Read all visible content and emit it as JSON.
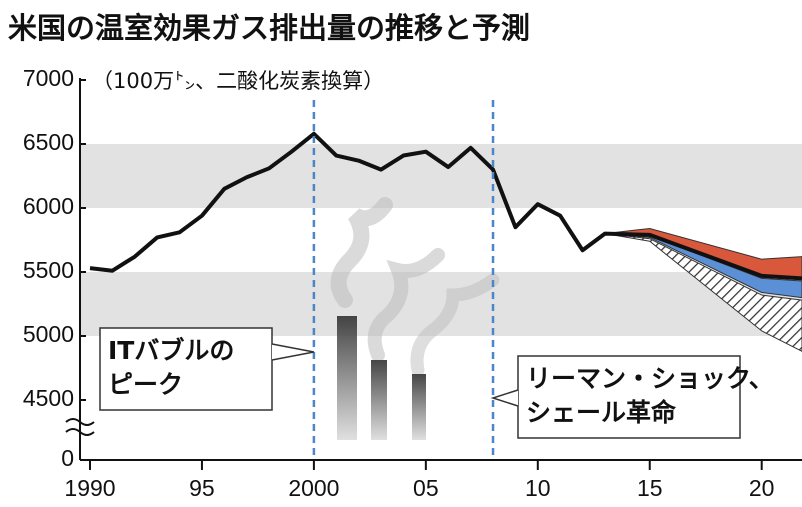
{
  "chart_data": {
    "type": "line",
    "title": "米国の温室効果ガス排出量の推移と予測",
    "y_label": "（100万㌧、二酸化炭素換算）",
    "xlim": [
      1990,
      2021.8
    ],
    "ylim": [
      0,
      7000
    ],
    "y_break": [
      0,
      4500
    ],
    "yticks": [
      0,
      4500,
      5000,
      5500,
      6000,
      6500,
      7000
    ],
    "xticks": [
      1990,
      {
        "value": 1995,
        "label": "95"
      },
      2000,
      {
        "value": 2005,
        "label": "05"
      },
      {
        "value": 2010,
        "label": "10"
      },
      {
        "value": 2015,
        "label": "15"
      },
      {
        "value": 2020,
        "label": "20"
      }
    ],
    "grid_bands": true,
    "series": [
      {
        "color": "#111111",
        "x": [
          1990,
          1991,
          1992,
          1993,
          1994,
          1995,
          1996,
          1997,
          1998,
          1999,
          2000,
          2001,
          2002,
          2003,
          2004,
          2005,
          2006,
          2007,
          2008,
          2009,
          2010,
          2011,
          2012,
          2013,
          2015,
          2020,
          2021.8
        ],
        "values": [
          5530,
          5510,
          5620,
          5770,
          5810,
          5940,
          6150,
          6240,
          6310,
          6440,
          6580,
          6410,
          6370,
          6300,
          6410,
          6440,
          6320,
          6470,
          6300,
          5850,
          6030,
          5940,
          5670,
          5800,
          5790,
          5470,
          5450
        ]
      }
    ],
    "bands": [
      {
        "color": "#d9583b",
        "x": [
          2013,
          2015,
          2020,
          2021.8
        ],
        "values": [
          5800,
          5840,
          5600,
          5620
        ],
        "lower": [
          5800,
          5790,
          5470,
          5450
        ]
      },
      {
        "color": "#5b8fd6",
        "x": [
          2013,
          2015,
          2020,
          2021.8
        ],
        "values": [
          5800,
          5785,
          5450,
          5430
        ],
        "lower": [
          5800,
          5770,
          5340,
          5300
        ]
      },
      {
        "color": "hatch",
        "x": [
          2013,
          2015,
          2020,
          2021.8
        ],
        "values": [
          5800,
          5760,
          5320,
          5280
        ],
        "lower": [
          5800,
          5740,
          5040,
          4880
        ]
      }
    ],
    "annotations": [
      {
        "x": 2000,
        "text": [
          "ITバブルの",
          "ピーク"
        ]
      },
      {
        "x": 2008,
        "text": [
          "リーマン・ショック、",
          "シェール革命"
        ]
      }
    ]
  }
}
